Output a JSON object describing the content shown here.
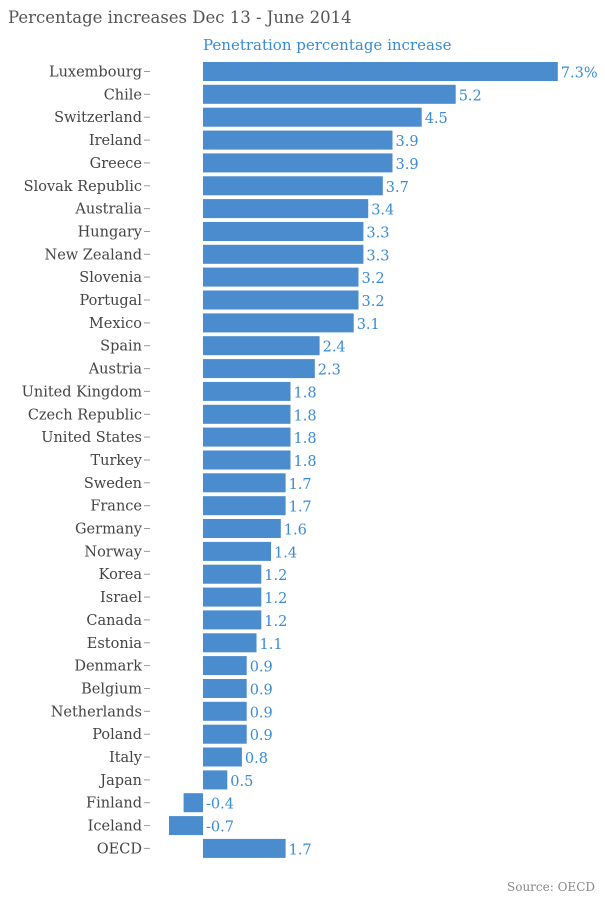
{
  "colors": {
    "bar": "#4a8ccd",
    "value_text": "#3a8bd6",
    "label_text": "#444444"
  },
  "source": "Source: OECD",
  "chart_data": {
    "type": "bar",
    "orientation": "horizontal",
    "title": "Percentage increases Dec 13 - June 2014",
    "series_name": "Penetration percentage increase",
    "categories": [
      "Luxembourg",
      "Chile",
      "Switzerland",
      "Ireland",
      "Greece",
      "Slovak Republic",
      "Australia",
      "Hungary",
      "New Zealand",
      "Slovenia",
      "Portugal",
      "Mexico",
      "Spain",
      "Austria",
      "United Kingdom",
      "Czech Republic",
      "United States",
      "Turkey",
      "Sweden",
      "France",
      "Germany",
      "Norway",
      "Korea",
      "Israel",
      "Canada",
      "Estonia",
      "Denmark",
      "Belgium",
      "Netherlands",
      "Poland",
      "Italy",
      "Japan",
      "Finland",
      "Iceland",
      "OECD"
    ],
    "values": [
      7.3,
      5.2,
      4.5,
      3.9,
      3.9,
      3.7,
      3.4,
      3.3,
      3.3,
      3.2,
      3.2,
      3.1,
      2.4,
      2.3,
      1.8,
      1.8,
      1.8,
      1.8,
      1.7,
      1.7,
      1.6,
      1.4,
      1.2,
      1.2,
      1.2,
      1.1,
      0.9,
      0.9,
      0.9,
      0.9,
      0.8,
      0.5,
      -0.4,
      -0.7,
      1.7
    ],
    "value_labels": [
      "7.3%",
      "5.2",
      "4.5",
      "3.9",
      "3.9",
      "3.7",
      "3.4",
      "3.3",
      "3.3",
      "3.2",
      "3.2",
      "3.1",
      "2.4",
      "2.3",
      "1.8",
      "1.8",
      "1.8",
      "1.8",
      "1.7",
      "1.7",
      "1.6",
      "1.4",
      "1.2",
      "1.2",
      "1.2",
      "1.1",
      "0.9",
      "0.9",
      "0.9",
      "0.9",
      "0.8",
      "0.5",
      "-0.4",
      "-0.7",
      "1.7"
    ],
    "xlim": [
      -0.7,
      7.3
    ],
    "xlabel": "",
    "ylabel": ""
  }
}
